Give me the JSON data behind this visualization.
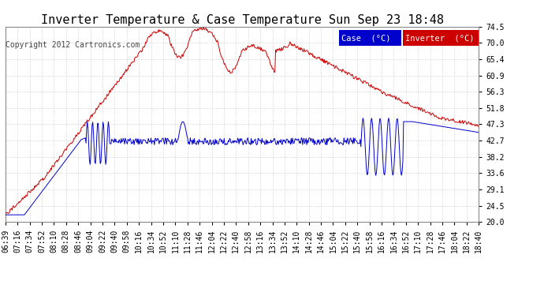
{
  "title": "Inverter Temperature & Case Temperature Sun Sep 23 18:48",
  "copyright": "Copyright 2012 Cartronics.com",
  "bg_color": "#ffffff",
  "plot_bg_color": "#ffffff",
  "grid_color": "#bbbbbb",
  "ylim": [
    20.0,
    74.5
  ],
  "yticks": [
    20.0,
    24.5,
    29.1,
    33.6,
    38.2,
    42.7,
    47.3,
    51.8,
    56.3,
    60.9,
    65.4,
    70.0,
    74.5
  ],
  "case_color": "#0000cc",
  "inverter_color": "#cc0000",
  "legend_case_bg": "#0000cc",
  "legend_inv_bg": "#cc0000",
  "title_fontsize": 11,
  "copyright_fontsize": 7,
  "tick_fontsize": 7,
  "xtick_labels": [
    "06:39",
    "07:16",
    "07:34",
    "07:52",
    "08:10",
    "08:28",
    "08:46",
    "09:04",
    "09:22",
    "09:40",
    "09:58",
    "10:16",
    "10:34",
    "10:52",
    "11:10",
    "11:28",
    "11:46",
    "12:04",
    "12:22",
    "12:40",
    "12:58",
    "13:16",
    "13:34",
    "13:52",
    "14:10",
    "14:28",
    "14:46",
    "15:04",
    "15:22",
    "15:40",
    "15:58",
    "16:16",
    "16:34",
    "16:52",
    "17:10",
    "17:28",
    "17:46",
    "18:04",
    "18:22",
    "18:40"
  ]
}
